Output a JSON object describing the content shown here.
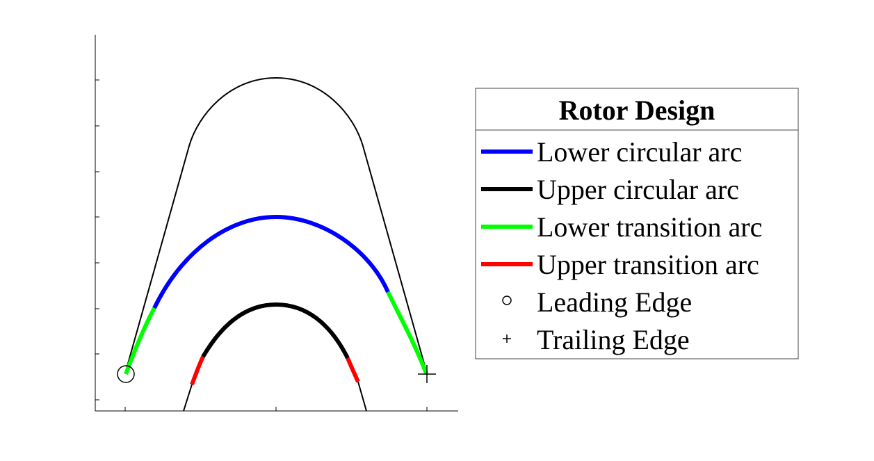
{
  "legend": {
    "title": "Rotor Design",
    "entries": [
      {
        "label": "Lower circular arc",
        "color": "#0000ff",
        "style": "line"
      },
      {
        "label": "Upper circular arc",
        "color": "#000000",
        "style": "line"
      },
      {
        "label": "Lower transition arc",
        "color": "#00ff00",
        "style": "line"
      },
      {
        "label": "Upper transition arc",
        "color": "#ff0000",
        "style": "line"
      },
      {
        "label": "Leading Edge",
        "color": "#000000",
        "style": "circle-marker"
      },
      {
        "label": "Trailing Edge",
        "color": "#000000",
        "style": "plus-marker"
      }
    ]
  },
  "colors": {
    "outline": "#000000",
    "lower_circular": "#0000ff",
    "upper_circular": "#000000",
    "lower_transition": "#00ff00",
    "upper_transition": "#ff0000"
  }
}
